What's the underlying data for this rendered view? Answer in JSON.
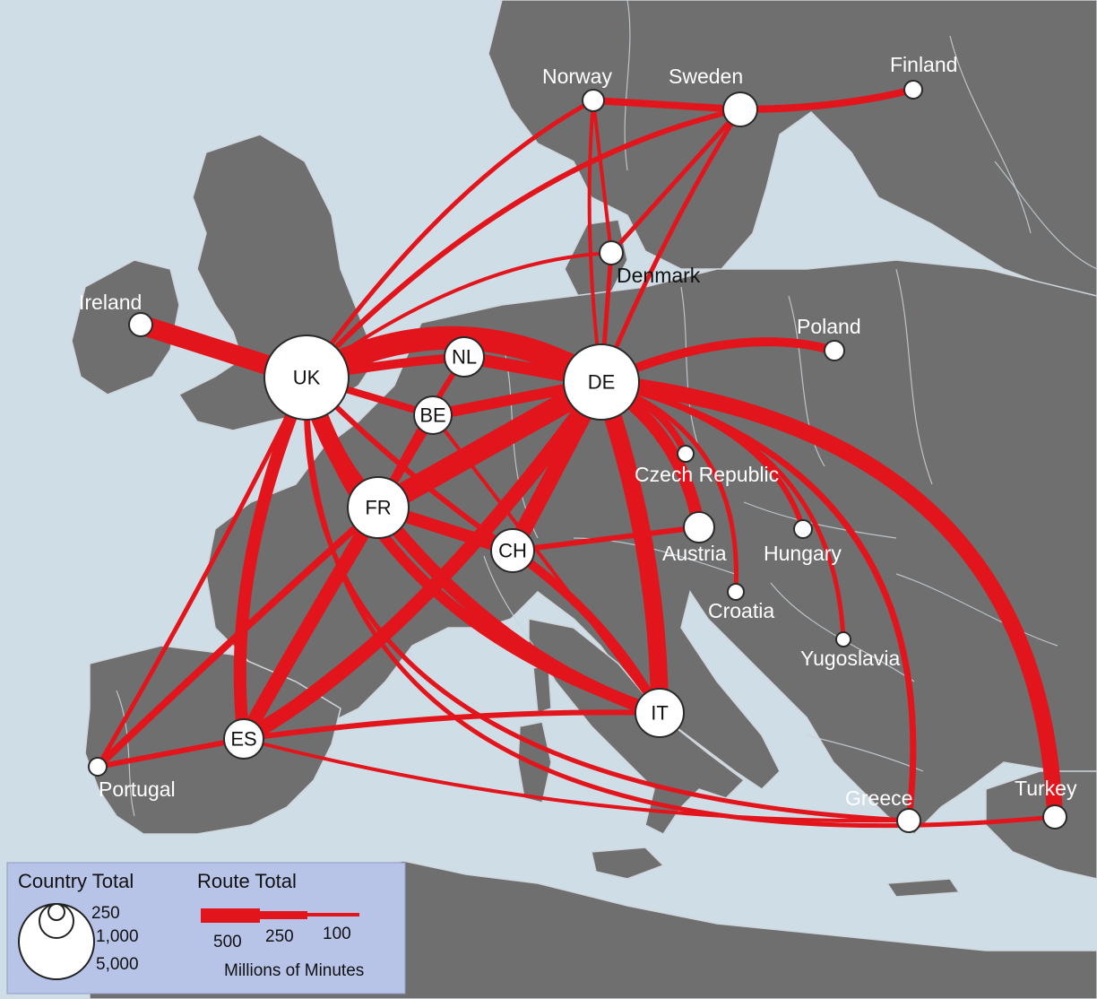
{
  "colors": {
    "sea": "#cfdde6",
    "land": "#6f6f6f",
    "route": "#e3151c",
    "node_fill": "#ffffff",
    "legend_bg": "#b7c4e8"
  },
  "countries": {
    "UK": "UK",
    "DE": "DE",
    "FR": "FR",
    "NL": "NL",
    "BE": "BE",
    "CH": "CH",
    "IT": "IT",
    "ES": "ES",
    "Ireland": "Ireland",
    "Norway": "Norway",
    "Sweden": "Sweden",
    "Finland": "Finland",
    "Denmark": "Denmark",
    "Poland": "Poland",
    "Czech": "Czech Republic",
    "Austria": "Austria",
    "Hungary": "Hungary",
    "Croatia": "Croatia",
    "Yugoslavia": "Yugoslavia",
    "Greece": "Greece",
    "Turkey": "Turkey",
    "Portugal": "Portugal"
  },
  "legend": {
    "country_total_title": "Country Total",
    "country_totals": [
      "250",
      "1,000",
      "5,000"
    ],
    "route_total_title": "Route Total",
    "route_totals": [
      "500",
      "250",
      "100"
    ],
    "units": "Millions of Minutes"
  }
}
